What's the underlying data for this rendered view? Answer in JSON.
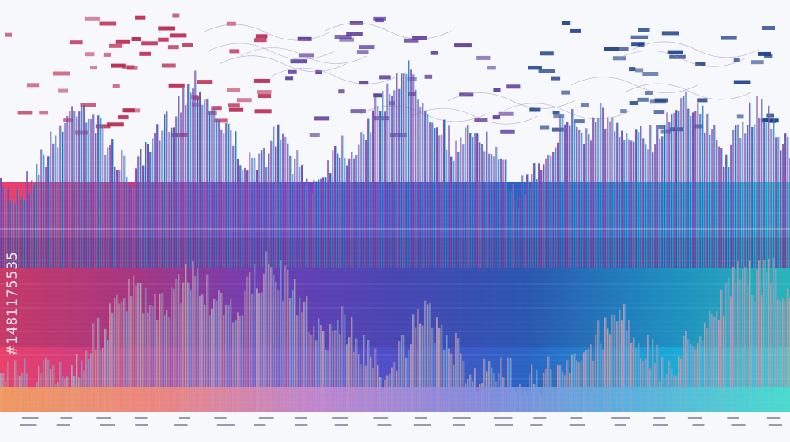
{
  "image": {
    "stock_id": "#1481175535",
    "gradient_stops": [
      "#e8406a",
      "#c23a8a",
      "#7c44c9",
      "#4e4fc7",
      "#2a63c4",
      "#1aa3d6",
      "#28d5d0"
    ],
    "lower_gradient_stops": [
      "#f5a05a",
      "#f58a7a",
      "#c98ad0",
      "#8a8ce0",
      "#5ab4e0",
      "#44e0d0"
    ],
    "background": "#f7f8fc",
    "grid_line_color": "#ffffff"
  }
}
